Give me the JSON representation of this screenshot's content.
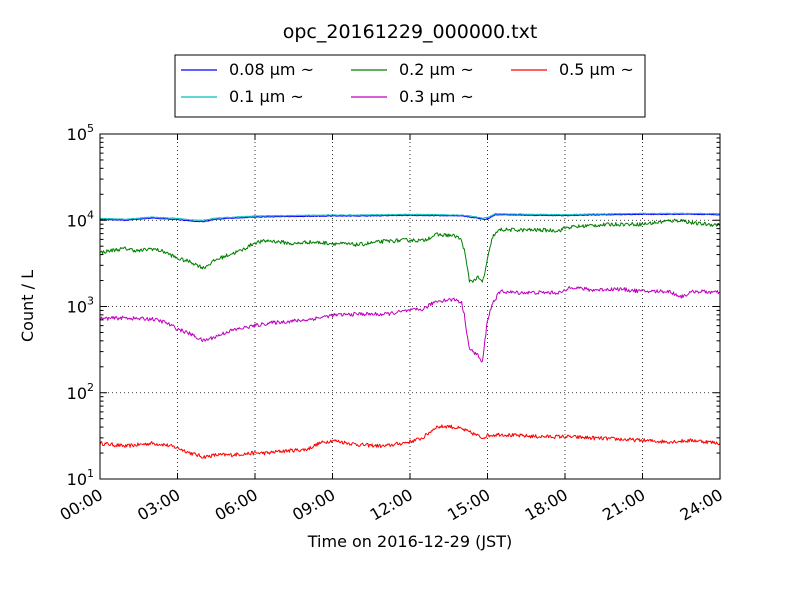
{
  "chart_data": {
    "type": "line",
    "title": "opc_20161229_000000.txt",
    "xlabel": "Time on 2016-12-29 (JST)",
    "ylabel": "Count / L",
    "yscale": "log",
    "xlim": [
      0,
      24
    ],
    "ylim": [
      10,
      100000
    ],
    "grid": true,
    "legend_placement": "top-center",
    "x_ticks": [
      {
        "value": 0,
        "label": "00:00"
      },
      {
        "value": 3,
        "label": "03:00"
      },
      {
        "value": 6,
        "label": "06:00"
      },
      {
        "value": 9,
        "label": "09:00"
      },
      {
        "value": 12,
        "label": "12:00"
      },
      {
        "value": 15,
        "label": "15:00"
      },
      {
        "value": 18,
        "label": "18:00"
      },
      {
        "value": 21,
        "label": "21:00"
      },
      {
        "value": 24,
        "label": "24:00"
      }
    ],
    "y_ticks": [
      {
        "value": 10,
        "base": "10",
        "exp": "1"
      },
      {
        "value": 100,
        "base": "10",
        "exp": "2"
      },
      {
        "value": 1000,
        "base": "10",
        "exp": "3"
      },
      {
        "value": 10000,
        "base": "10",
        "exp": "4"
      },
      {
        "value": 100000,
        "base": "10",
        "exp": "5"
      }
    ],
    "series": [
      {
        "name": "0.08 μm ~",
        "color": "#0000ff",
        "x": [
          0,
          1,
          2,
          3,
          3.5,
          4,
          4.5,
          5,
          6,
          7,
          8,
          9,
          10,
          11,
          12,
          13,
          14,
          14.5,
          14.8,
          15,
          15.3,
          16,
          17,
          18,
          19,
          20,
          21,
          22,
          23,
          24
        ],
        "y": [
          10200,
          10000,
          10600,
          10200,
          9800,
          9600,
          10300,
          10500,
          10900,
          11000,
          11100,
          11200,
          11200,
          11300,
          11400,
          11300,
          11200,
          10700,
          10300,
          10300,
          11600,
          11500,
          11400,
          11300,
          11500,
          11600,
          11700,
          11700,
          11700,
          11600
        ]
      },
      {
        "name": "0.1 μm ~",
        "color": "#00bfbf",
        "x": [
          0,
          1,
          2,
          3,
          3.5,
          4,
          4.5,
          5,
          6,
          7,
          8,
          9,
          10,
          11,
          12,
          13,
          14,
          14.5,
          14.8,
          15,
          15.3,
          16,
          17,
          18,
          19,
          20,
          21,
          22,
          23,
          24
        ],
        "y": [
          10500,
          10300,
          10900,
          10500,
          10100,
          10000,
          10600,
          10800,
          11200,
          11300,
          11400,
          11500,
          11500,
          11600,
          11700,
          11600,
          11500,
          11000,
          10600,
          10700,
          11900,
          11800,
          11700,
          11600,
          11800,
          11900,
          12000,
          12000,
          12000,
          11900
        ]
      },
      {
        "name": "0.2 μm ~",
        "color": "#007f00",
        "x": [
          0,
          0.5,
          1,
          1.5,
          2,
          2.5,
          3,
          3.5,
          4,
          4.5,
          5,
          5.5,
          6,
          6.5,
          7,
          7.5,
          8,
          9,
          10,
          11,
          12,
          12.5,
          13,
          13.5,
          13.8,
          14,
          14.1,
          14.3,
          14.5,
          14.6,
          14.8,
          14.9,
          15.0,
          15.2,
          15.5,
          16,
          17,
          17.8,
          18,
          19,
          20,
          21,
          22,
          22.5,
          23,
          24
        ],
        "y": [
          4200,
          4500,
          4700,
          4400,
          4700,
          4300,
          3600,
          3300,
          2800,
          3500,
          4000,
          4500,
          5500,
          5800,
          5600,
          5300,
          5600,
          5400,
          5200,
          5700,
          5900,
          5800,
          6800,
          6700,
          6500,
          5800,
          4500,
          2000,
          2000,
          2200,
          1900,
          2500,
          3500,
          6500,
          7800,
          7700,
          7700,
          7600,
          8200,
          8700,
          9000,
          9000,
          9800,
          10000,
          9200,
          8800
        ]
      },
      {
        "name": "0.3 μm ~",
        "color": "#bf00bf",
        "x": [
          0,
          0.5,
          1,
          1.5,
          2,
          2.5,
          3,
          3.5,
          4,
          4.5,
          5,
          5.5,
          6,
          6.5,
          7,
          7.5,
          8,
          9,
          10,
          11,
          12,
          12.5,
          13,
          13.5,
          13.8,
          14,
          14.1,
          14.3,
          14.5,
          14.6,
          14.8,
          14.9,
          15.0,
          15.2,
          15.5,
          16,
          17,
          17.8,
          18,
          18.2,
          19,
          20,
          21,
          22,
          22.5,
          23,
          24
        ],
        "y": [
          720,
          730,
          740,
          720,
          720,
          660,
          550,
          480,
          400,
          450,
          520,
          560,
          600,
          640,
          660,
          680,
          700,
          790,
          820,
          810,
          900,
          930,
          1150,
          1200,
          1200,
          1100,
          800,
          320,
          290,
          280,
          220,
          400,
          700,
          1100,
          1500,
          1450,
          1450,
          1450,
          1500,
          1700,
          1550,
          1600,
          1500,
          1500,
          1300,
          1500,
          1450
        ]
      },
      {
        "name": "0.5 μm ~",
        "color": "#ff0000",
        "x": [
          0,
          1,
          2,
          2.5,
          3,
          3.5,
          4,
          4.5,
          5,
          6,
          6.5,
          7,
          8,
          8.5,
          9,
          10,
          11,
          12,
          12.5,
          13,
          13.5,
          14,
          14.5,
          14.8,
          15,
          15.5,
          16,
          17,
          18,
          19,
          20,
          21,
          22,
          23,
          24
        ],
        "y": [
          26,
          24,
          26,
          25,
          23,
          20,
          18,
          19,
          19,
          20,
          20,
          21,
          22,
          26,
          28,
          25,
          24,
          27,
          30,
          40,
          41,
          38,
          33,
          30,
          32,
          33,
          32,
          31,
          31,
          30,
          29,
          28,
          27,
          28,
          26
        ]
      }
    ]
  }
}
